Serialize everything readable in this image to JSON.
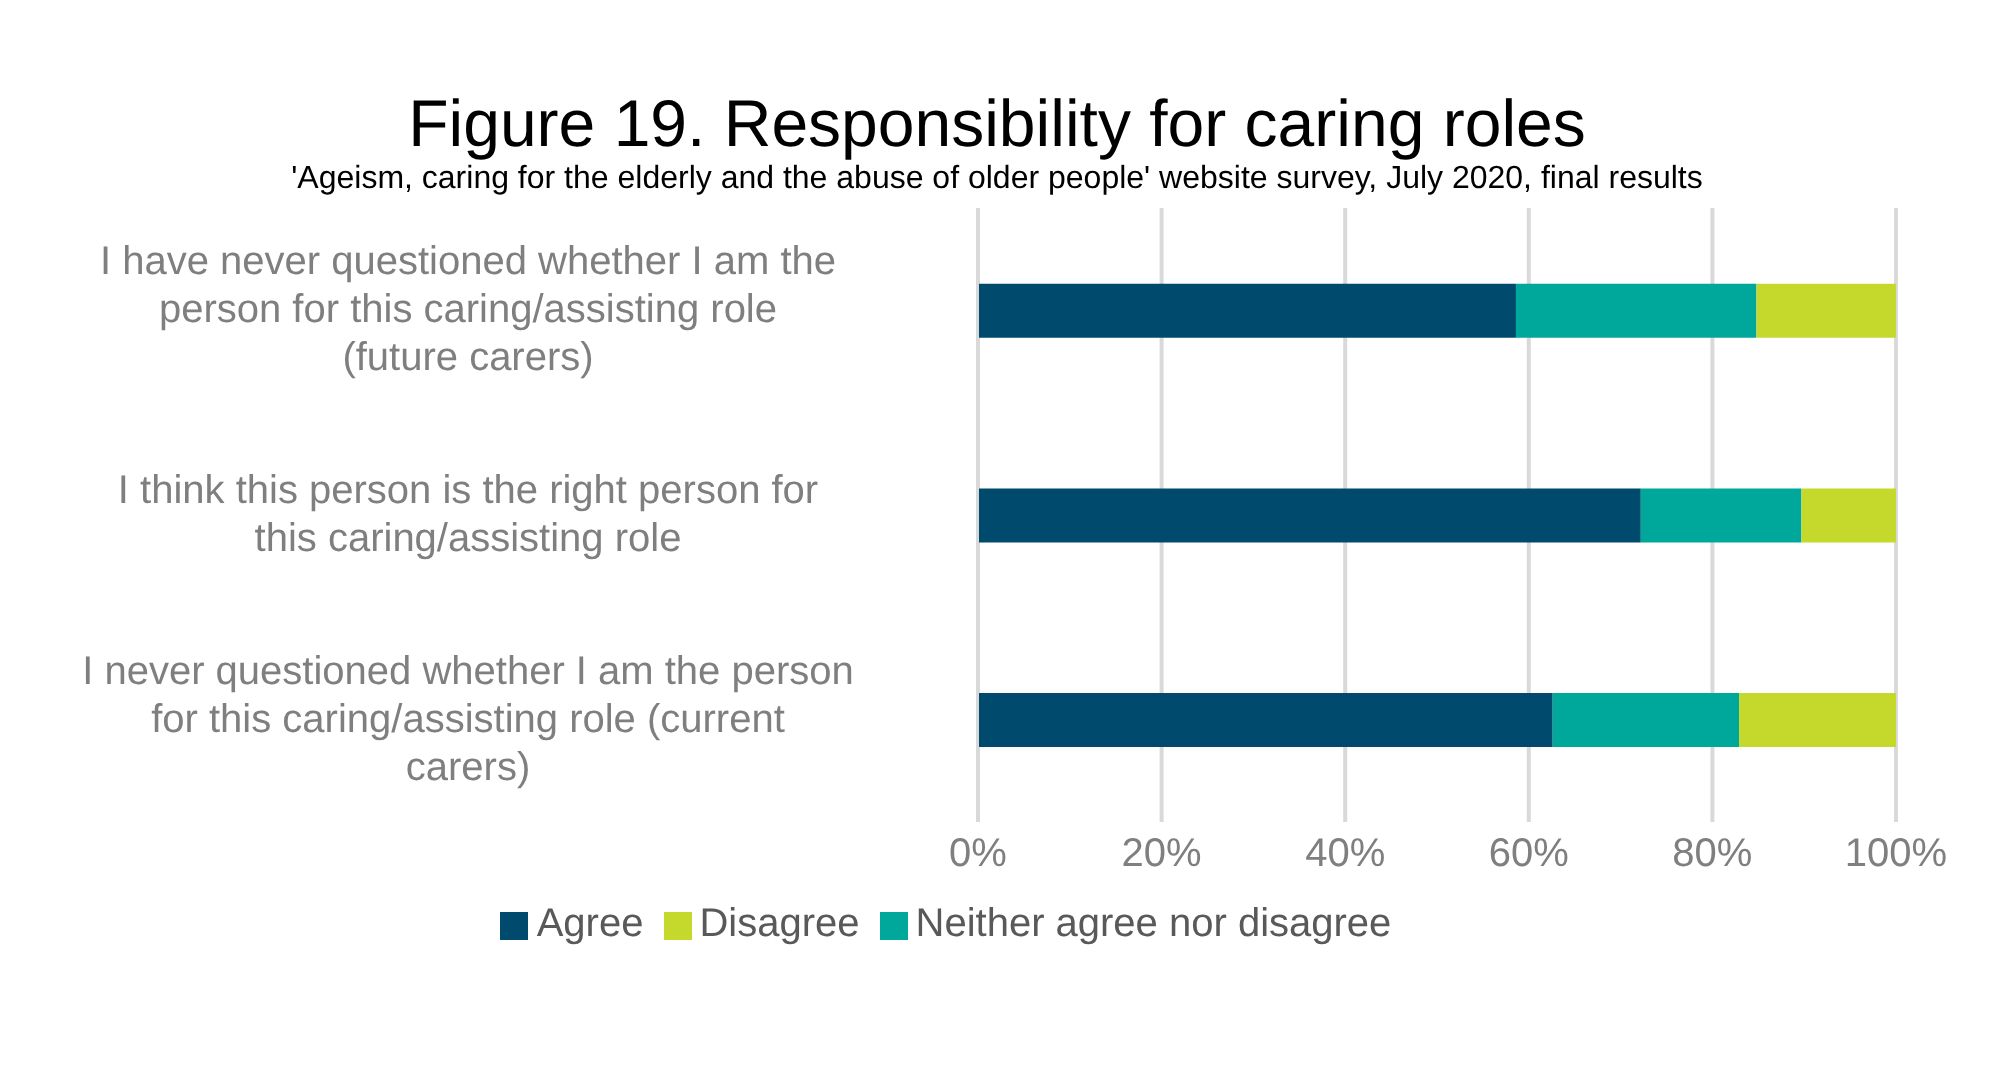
{
  "chart_data": {
    "type": "bar",
    "orientation": "horizontal",
    "stacked": true,
    "title": "Figure 19. Responsibility for caring roles",
    "subtitle": "'Ageism, caring for the elderly and the abuse of older people' website survey, July 2020, final results",
    "categories": [
      "I have never questioned whether I am the person for this caring/assisting role (future carers)",
      "I think this person is the right person for this caring/assisting role",
      "I never questioned whether I am the person for this caring/assisting role (current carers)"
    ],
    "series": [
      {
        "name": "Agree",
        "color": "#004a6e",
        "values": [
          58.6,
          72.2,
          62.6
        ]
      },
      {
        "name": "Neither agree nor disagree",
        "color": "#00a89c",
        "values": [
          26.2,
          17.5,
          20.3
        ]
      },
      {
        "name": "Disagree",
        "color": "#c5d92d",
        "values": [
          15.2,
          10.3,
          17.1
        ]
      }
    ],
    "xlim": [
      0,
      100
    ],
    "xticks": [
      {
        "value": 0,
        "label": "0%"
      },
      {
        "value": 20,
        "label": "20%"
      },
      {
        "value": 40,
        "label": "40%"
      },
      {
        "value": 60,
        "label": "60%"
      },
      {
        "value": 80,
        "label": "80%"
      },
      {
        "value": 100,
        "label": "100%"
      }
    ],
    "grid": "x",
    "legend": "bottom"
  }
}
